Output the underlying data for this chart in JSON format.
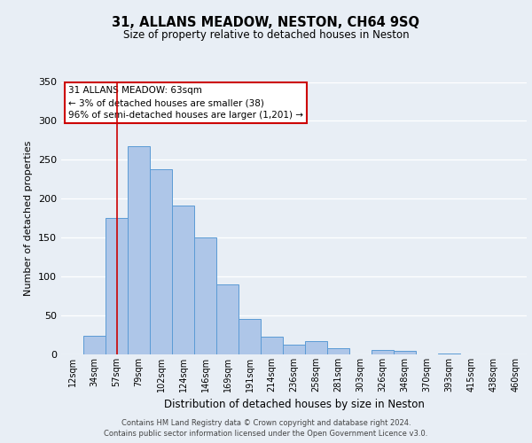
{
  "title": "31, ALLANS MEADOW, NESTON, CH64 9SQ",
  "subtitle": "Size of property relative to detached houses in Neston",
  "xlabel": "Distribution of detached houses by size in Neston",
  "ylabel": "Number of detached properties",
  "bar_labels": [
    "12sqm",
    "34sqm",
    "57sqm",
    "79sqm",
    "102sqm",
    "124sqm",
    "146sqm",
    "169sqm",
    "191sqm",
    "214sqm",
    "236sqm",
    "258sqm",
    "281sqm",
    "303sqm",
    "326sqm",
    "348sqm",
    "370sqm",
    "393sqm",
    "415sqm",
    "438sqm",
    "460sqm"
  ],
  "bar_values": [
    0,
    24,
    175,
    267,
    238,
    191,
    150,
    90,
    45,
    23,
    13,
    17,
    8,
    0,
    6,
    4,
    0,
    1,
    0,
    0,
    0
  ],
  "bar_color": "#aec6e8",
  "bar_edge_color": "#5b9bd5",
  "bar_width": 1.0,
  "ylim": [
    0,
    350
  ],
  "yticks": [
    0,
    50,
    100,
    150,
    200,
    250,
    300,
    350
  ],
  "vline_x": 2,
  "vline_color": "#cc0000",
  "annotation_title": "31 ALLANS MEADOW: 63sqm",
  "annotation_line2": "← 3% of detached houses are smaller (38)",
  "annotation_line3": "96% of semi-detached houses are larger (1,201) →",
  "annotation_box_color": "#ffffff",
  "annotation_box_edge": "#cc0000",
  "bg_color": "#e8eef5",
  "plot_bg_color": "#e8eef5",
  "footer_line1": "Contains HM Land Registry data © Crown copyright and database right 2024.",
  "footer_line2": "Contains public sector information licensed under the Open Government Licence v3.0."
}
